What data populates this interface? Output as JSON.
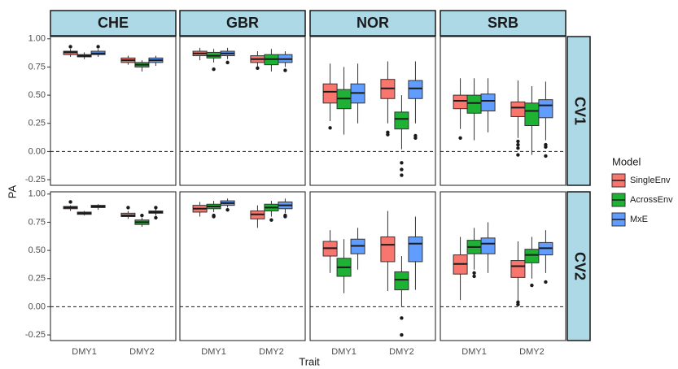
{
  "chart_data": {
    "type": "box",
    "x_label": "Trait",
    "y_label": "PA",
    "legend_title": "Model",
    "columns": [
      "CHE",
      "GBR",
      "NOR",
      "SRB"
    ],
    "rows": [
      "CV1",
      "CV2"
    ],
    "categories": [
      "DMY1",
      "DMY2"
    ],
    "series": [
      {
        "name": "SingleEnv",
        "color": "#f8766d"
      },
      {
        "name": "AcrossEnv",
        "color": "#1db233"
      },
      {
        "name": "MxE",
        "color": "#619cff"
      }
    ],
    "ylim": [
      -0.3,
      1.02
    ],
    "yticks": [
      {
        "value": 1,
        "label": "1.00"
      },
      {
        "value": 0.75,
        "label": "0.75"
      },
      {
        "value": 0.5,
        "label": "0.50"
      },
      {
        "value": 0.25,
        "label": "0.25"
      },
      {
        "value": 0,
        "label": "0.00"
      },
      {
        "value": -0.25,
        "label": "-0.25"
      }
    ],
    "hline": 0,
    "panels": [
      [
        {
          "boxes": [
            [
              {
                "min": 0.84,
                "q1": 0.86,
                "median": 0.88,
                "q3": 0.89,
                "max": 0.91,
                "outliers": [
                  0.93
                ]
              },
              {
                "min": 0.82,
                "q1": 0.84,
                "median": 0.85,
                "q3": 0.86,
                "max": 0.88,
                "outliers": []
              },
              {
                "min": 0.84,
                "q1": 0.86,
                "median": 0.87,
                "q3": 0.89,
                "max": 0.91,
                "outliers": [
                  0.93
                ]
              }
            ],
            [
              {
                "min": 0.77,
                "q1": 0.79,
                "median": 0.81,
                "q3": 0.83,
                "max": 0.85,
                "outliers": []
              },
              {
                "min": 0.71,
                "q1": 0.75,
                "median": 0.77,
                "q3": 0.79,
                "max": 0.81,
                "outliers": []
              },
              {
                "min": 0.76,
                "q1": 0.79,
                "median": 0.81,
                "q3": 0.83,
                "max": 0.85,
                "outliers": []
              }
            ]
          ]
        },
        {
          "boxes": [
            [
              {
                "min": 0.81,
                "q1": 0.85,
                "median": 0.87,
                "q3": 0.89,
                "max": 0.92,
                "outliers": []
              },
              {
                "min": 0.79,
                "q1": 0.83,
                "median": 0.85,
                "q3": 0.88,
                "max": 0.91,
                "outliers": [
                  0.73
                ]
              },
              {
                "min": 0.82,
                "q1": 0.85,
                "median": 0.87,
                "q3": 0.89,
                "max": 0.92,
                "outliers": [
                  0.79
                ]
              }
            ],
            [
              {
                "min": 0.75,
                "q1": 0.79,
                "median": 0.82,
                "q3": 0.85,
                "max": 0.89,
                "outliers": [
                  0.74
                ]
              },
              {
                "min": 0.71,
                "q1": 0.77,
                "median": 0.82,
                "q3": 0.86,
                "max": 0.91,
                "outliers": []
              },
              {
                "min": 0.75,
                "q1": 0.79,
                "median": 0.82,
                "q3": 0.86,
                "max": 0.89,
                "outliers": [
                  0.72
                ]
              }
            ]
          ]
        },
        {
          "boxes": [
            [
              {
                "min": 0.27,
                "q1": 0.43,
                "median": 0.53,
                "q3": 0.6,
                "max": 0.78,
                "outliers": [
                  0.21
                ]
              },
              {
                "min": 0.15,
                "q1": 0.38,
                "median": 0.47,
                "q3": 0.55,
                "max": 0.75,
                "outliers": []
              },
              {
                "min": 0.25,
                "q1": 0.43,
                "median": 0.52,
                "q3": 0.6,
                "max": 0.78,
                "outliers": []
              }
            ],
            [
              {
                "min": 0.25,
                "q1": 0.47,
                "median": 0.56,
                "q3": 0.64,
                "max": 0.8,
                "outliers": [
                  0.17,
                  0.15
                ]
              },
              {
                "min": 0.02,
                "q1": 0.2,
                "median": 0.29,
                "q3": 0.35,
                "max": 0.5,
                "outliers": [
                  -0.1,
                  -0.16,
                  -0.21
                ]
              },
              {
                "min": 0.25,
                "q1": 0.47,
                "median": 0.56,
                "q3": 0.63,
                "max": 0.8,
                "outliers": [
                  0.14,
                  0.12
                ]
              }
            ]
          ]
        },
        {
          "boxes": [
            [
              {
                "min": 0.2,
                "q1": 0.38,
                "median": 0.45,
                "q3": 0.5,
                "max": 0.65,
                "outliers": [
                  0.12
                ]
              },
              {
                "min": 0.1,
                "q1": 0.34,
                "median": 0.43,
                "q3": 0.5,
                "max": 0.65,
                "outliers": []
              },
              {
                "min": 0.17,
                "q1": 0.36,
                "median": 0.45,
                "q3": 0.51,
                "max": 0.65,
                "outliers": []
              }
            ],
            [
              {
                "min": 0.12,
                "q1": 0.31,
                "median": 0.39,
                "q3": 0.44,
                "max": 0.63,
                "outliers": [
                  0.09,
                  0.06,
                  0.03,
                  -0.03
                ]
              },
              {
                "min": -0.03,
                "q1": 0.23,
                "median": 0.36,
                "q3": 0.43,
                "max": 0.58,
                "outliers": []
              },
              {
                "min": 0.1,
                "q1": 0.3,
                "median": 0.41,
                "q3": 0.46,
                "max": 0.62,
                "outliers": [
                  0.06,
                  0.04,
                  -0.04
                ]
              }
            ]
          ]
        }
      ],
      [
        {
          "boxes": [
            [
              {
                "min": 0.85,
                "q1": 0.87,
                "median": 0.88,
                "q3": 0.89,
                "max": 0.9,
                "outliers": [
                  0.93
                ]
              },
              {
                "min": 0.81,
                "q1": 0.82,
                "median": 0.83,
                "q3": 0.84,
                "max": 0.85,
                "outliers": []
              },
              {
                "min": 0.86,
                "q1": 0.88,
                "median": 0.89,
                "q3": 0.9,
                "max": 0.91,
                "outliers": []
              }
            ],
            [
              {
                "min": 0.78,
                "q1": 0.8,
                "median": 0.81,
                "q3": 0.83,
                "max": 0.85,
                "outliers": [
                  0.88
                ]
              },
              {
                "min": 0.71,
                "q1": 0.73,
                "median": 0.75,
                "q3": 0.77,
                "max": 0.79,
                "outliers": [
                  0.81
                ]
              },
              {
                "min": 0.81,
                "q1": 0.83,
                "median": 0.84,
                "q3": 0.85,
                "max": 0.87,
                "outliers": [
                  0.88,
                  0.79
                ]
              }
            ]
          ]
        },
        {
          "boxes": [
            [
              {
                "min": 0.8,
                "q1": 0.84,
                "median": 0.87,
                "q3": 0.9,
                "max": 0.93,
                "outliers": []
              },
              {
                "min": 0.84,
                "q1": 0.87,
                "median": 0.89,
                "q3": 0.91,
                "max": 0.94,
                "outliers": [
                  0.81,
                  0.8
                ]
              },
              {
                "min": 0.88,
                "q1": 0.9,
                "median": 0.92,
                "q3": 0.94,
                "max": 0.96,
                "outliers": [
                  0.86
                ]
              }
            ],
            [
              {
                "min": 0.7,
                "q1": 0.78,
                "median": 0.82,
                "q3": 0.85,
                "max": 0.9,
                "outliers": []
              },
              {
                "min": 0.8,
                "q1": 0.85,
                "median": 0.88,
                "q3": 0.91,
                "max": 0.94,
                "outliers": [
                  0.77
                ]
              },
              {
                "min": 0.83,
                "q1": 0.87,
                "median": 0.9,
                "q3": 0.93,
                "max": 0.96,
                "outliers": [
                  0.81,
                  0.8
                ]
              }
            ]
          ]
        },
        {
          "boxes": [
            [
              {
                "min": 0.3,
                "q1": 0.45,
                "median": 0.52,
                "q3": 0.58,
                "max": 0.68,
                "outliers": []
              },
              {
                "min": 0.12,
                "q1": 0.27,
                "median": 0.35,
                "q3": 0.43,
                "max": 0.6,
                "outliers": []
              },
              {
                "min": 0.33,
                "q1": 0.47,
                "median": 0.54,
                "q3": 0.6,
                "max": 0.7,
                "outliers": []
              }
            ],
            [
              {
                "min": 0.14,
                "q1": 0.4,
                "median": 0.55,
                "q3": 0.62,
                "max": 0.85,
                "outliers": []
              },
              {
                "min": 0,
                "q1": 0.15,
                "median": 0.24,
                "q3": 0.31,
                "max": 0.45,
                "outliers": [
                  -0.1,
                  -0.25
                ]
              },
              {
                "min": 0.15,
                "q1": 0.4,
                "median": 0.56,
                "q3": 0.62,
                "max": 0.8,
                "outliers": []
              }
            ]
          ]
        },
        {
          "boxes": [
            [
              {
                "min": 0.06,
                "q1": 0.29,
                "median": 0.38,
                "q3": 0.46,
                "max": 0.62,
                "outliers": []
              },
              {
                "min": 0.33,
                "q1": 0.47,
                "median": 0.53,
                "q3": 0.59,
                "max": 0.7,
                "outliers": [
                  0.3,
                  0.27
                ]
              },
              {
                "min": 0.3,
                "q1": 0.47,
                "median": 0.56,
                "q3": 0.61,
                "max": 0.75,
                "outliers": []
              }
            ],
            [
              {
                "min": 0.05,
                "q1": 0.26,
                "median": 0.36,
                "q3": 0.41,
                "max": 0.58,
                "outliers": [
                  0.04,
                  0.02
                ]
              },
              {
                "min": 0.25,
                "q1": 0.39,
                "median": 0.46,
                "q3": 0.51,
                "max": 0.62,
                "outliers": [
                  0.19
                ]
              },
              {
                "min": 0.3,
                "q1": 0.46,
                "median": 0.52,
                "q3": 0.57,
                "max": 0.68,
                "outliers": [
                  0.22
                ]
              }
            ]
          ]
        }
      ]
    ]
  }
}
